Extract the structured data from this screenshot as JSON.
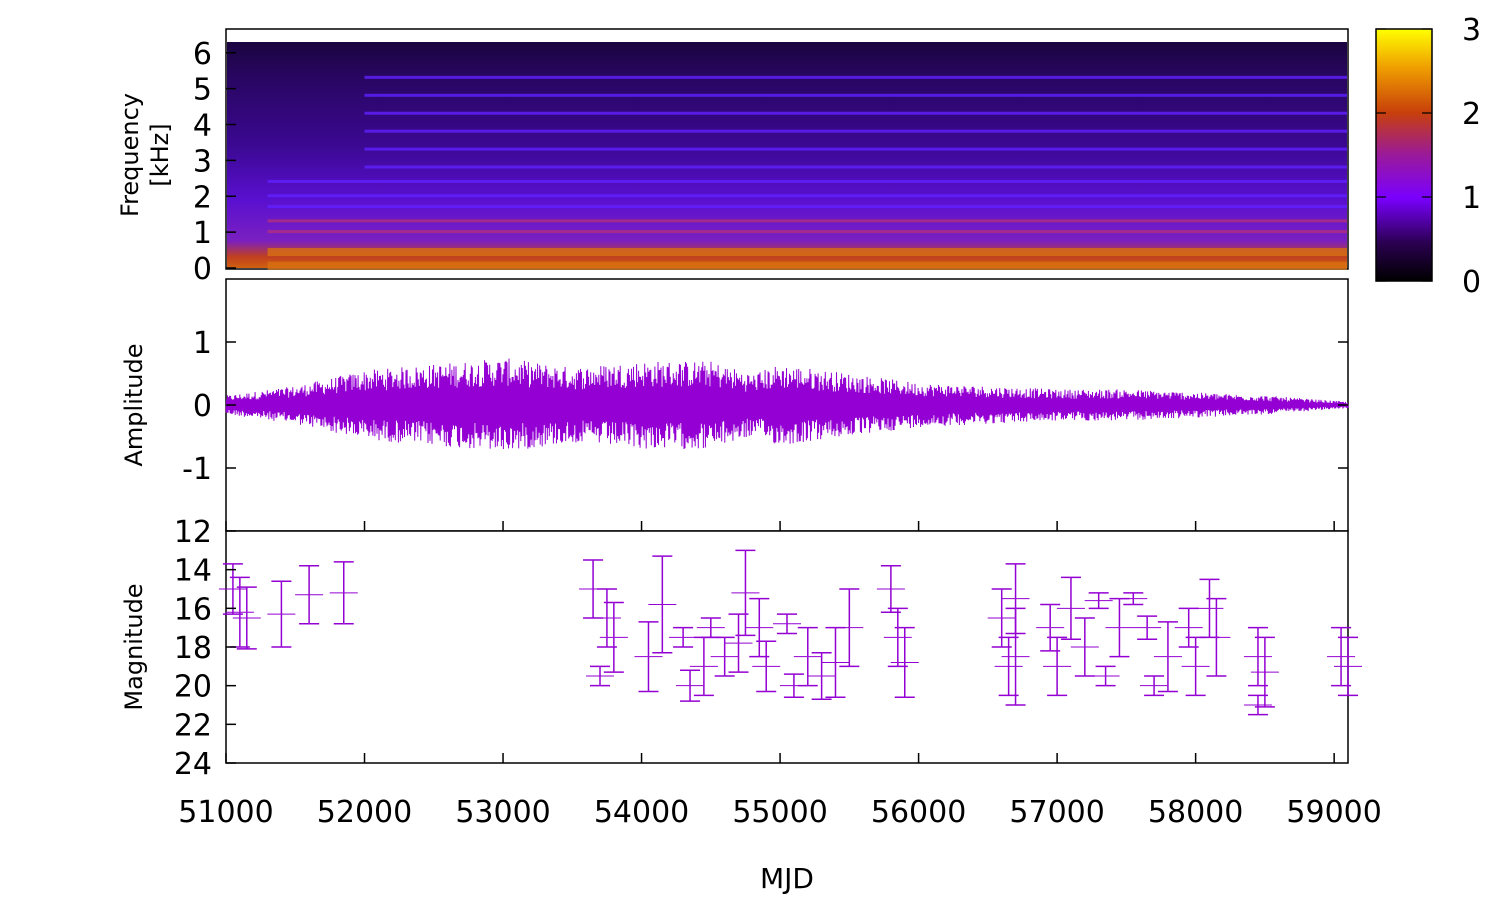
{
  "chart_data": [
    {
      "type": "heatmap",
      "panel": "spectrogram",
      "ylabel_line1": "Frequency",
      "ylabel_line2": "[kHz]",
      "xlim": [
        51000,
        59100
      ],
      "ylim": [
        0,
        6.3
      ],
      "yticks": [
        "0",
        "1",
        "2",
        "3",
        "4",
        "5",
        "6"
      ],
      "ytick_values": [
        0,
        1,
        2,
        3,
        4,
        5,
        6
      ],
      "colorbar": {
        "min": 0,
        "max": 3,
        "ticks": [
          "0",
          "1",
          "2",
          "3"
        ],
        "tick_values": [
          0,
          1,
          2,
          3
        ]
      },
      "colors": {
        "low": "#000000",
        "mid": "#7a00ff",
        "high": "#c8400a",
        "top": "#ffff00"
      }
    },
    {
      "type": "line",
      "panel": "waveform",
      "ylabel": "Amplitude",
      "xlim": [
        51000,
        59100
      ],
      "ylim": [
        -2,
        2
      ],
      "yticks": [
        "-1",
        "0",
        "1"
      ],
      "ytick_values": [
        -1,
        0,
        1
      ],
      "envelope_x": [
        51000,
        51500,
        52000,
        52500,
        53000,
        53500,
        54000,
        54500,
        54800,
        55000,
        55500,
        56000,
        56500,
        57000,
        57500,
        58000,
        58500,
        59100
      ],
      "envelope_amplitude": [
        0.15,
        0.3,
        0.55,
        0.65,
        0.75,
        0.6,
        0.7,
        0.7,
        0.5,
        0.65,
        0.5,
        0.35,
        0.3,
        0.25,
        0.25,
        0.2,
        0.15,
        0.05
      ],
      "color": "#9400d3"
    },
    {
      "type": "scatter",
      "panel": "light_curve",
      "ylabel": "Magnitude",
      "xlabel": "MJD",
      "xlim": [
        51000,
        59100
      ],
      "ylim": [
        24,
        12
      ],
      "yticks": [
        "12",
        "14",
        "16",
        "18",
        "20",
        "22",
        "24"
      ],
      "ytick_values": [
        12,
        14,
        16,
        18,
        20,
        22,
        24
      ],
      "xticks": [
        "51000",
        "52000",
        "53000",
        "54000",
        "55000",
        "56000",
        "57000",
        "58000",
        "59000"
      ],
      "xtick_values": [
        51000,
        52000,
        53000,
        54000,
        55000,
        56000,
        57000,
        58000,
        59000
      ],
      "color": "#9400d3",
      "points": [
        {
          "x": 51050,
          "y": 15.0,
          "e": 1.3
        },
        {
          "x": 51100,
          "y": 16.2,
          "e": 1.8
        },
        {
          "x": 51150,
          "y": 16.5,
          "e": 1.6
        },
        {
          "x": 51400,
          "y": 16.3,
          "e": 1.7
        },
        {
          "x": 51600,
          "y": 15.3,
          "e": 1.5
        },
        {
          "x": 51850,
          "y": 15.2,
          "e": 1.6
        },
        {
          "x": 53650,
          "y": 15.0,
          "e": 1.5
        },
        {
          "x": 53700,
          "y": 19.5,
          "e": 0.5
        },
        {
          "x": 53750,
          "y": 16.5,
          "e": 1.5
        },
        {
          "x": 53800,
          "y": 17.5,
          "e": 1.8
        },
        {
          "x": 54050,
          "y": 18.5,
          "e": 1.8
        },
        {
          "x": 54150,
          "y": 15.8,
          "e": 2.5
        },
        {
          "x": 54300,
          "y": 17.5,
          "e": 0.5
        },
        {
          "x": 54350,
          "y": 20.0,
          "e": 0.8
        },
        {
          "x": 54450,
          "y": 19.0,
          "e": 1.5
        },
        {
          "x": 54500,
          "y": 17.0,
          "e": 0.5
        },
        {
          "x": 54600,
          "y": 18.5,
          "e": 1.0
        },
        {
          "x": 54700,
          "y": 17.8,
          "e": 1.5
        },
        {
          "x": 54750,
          "y": 15.2,
          "e": 2.2
        },
        {
          "x": 54850,
          "y": 17.0,
          "e": 1.5
        },
        {
          "x": 54900,
          "y": 19.0,
          "e": 1.3
        },
        {
          "x": 55050,
          "y": 16.8,
          "e": 0.5
        },
        {
          "x": 55100,
          "y": 20.0,
          "e": 0.6
        },
        {
          "x": 55200,
          "y": 18.5,
          "e": 1.5
        },
        {
          "x": 55300,
          "y": 19.5,
          "e": 1.2
        },
        {
          "x": 55400,
          "y": 18.8,
          "e": 1.8
        },
        {
          "x": 55500,
          "y": 17.0,
          "e": 2.0
        },
        {
          "x": 55800,
          "y": 15.0,
          "e": 1.2
        },
        {
          "x": 55850,
          "y": 17.5,
          "e": 1.5
        },
        {
          "x": 55900,
          "y": 18.8,
          "e": 1.8
        },
        {
          "x": 56600,
          "y": 16.5,
          "e": 1.5
        },
        {
          "x": 56650,
          "y": 19.0,
          "e": 1.5
        },
        {
          "x": 56700,
          "y": 18.5,
          "e": 2.5
        },
        {
          "x": 56700,
          "y": 15.5,
          "e": 1.8
        },
        {
          "x": 56950,
          "y": 17.0,
          "e": 1.2
        },
        {
          "x": 57000,
          "y": 19.0,
          "e": 1.5
        },
        {
          "x": 57100,
          "y": 16.0,
          "e": 1.6
        },
        {
          "x": 57200,
          "y": 18.0,
          "e": 1.5
        },
        {
          "x": 57300,
          "y": 15.6,
          "e": 0.4
        },
        {
          "x": 57350,
          "y": 19.5,
          "e": 0.5
        },
        {
          "x": 57450,
          "y": 17.0,
          "e": 1.5
        },
        {
          "x": 57550,
          "y": 15.5,
          "e": 0.3
        },
        {
          "x": 57650,
          "y": 17.0,
          "e": 0.6
        },
        {
          "x": 57700,
          "y": 20.0,
          "e": 0.5
        },
        {
          "x": 57800,
          "y": 18.5,
          "e": 1.8
        },
        {
          "x": 57950,
          "y": 17.0,
          "e": 1.0
        },
        {
          "x": 58000,
          "y": 19.0,
          "e": 1.5
        },
        {
          "x": 58100,
          "y": 16.0,
          "e": 1.5
        },
        {
          "x": 58150,
          "y": 17.5,
          "e": 2.0
        },
        {
          "x": 58450,
          "y": 18.5,
          "e": 1.5
        },
        {
          "x": 58500,
          "y": 19.3,
          "e": 1.8
        },
        {
          "x": 58450,
          "y": 21.0,
          "e": 0.5
        },
        {
          "x": 59050,
          "y": 18.5,
          "e": 1.5
        },
        {
          "x": 59100,
          "y": 19.0,
          "e": 1.5
        }
      ]
    }
  ]
}
